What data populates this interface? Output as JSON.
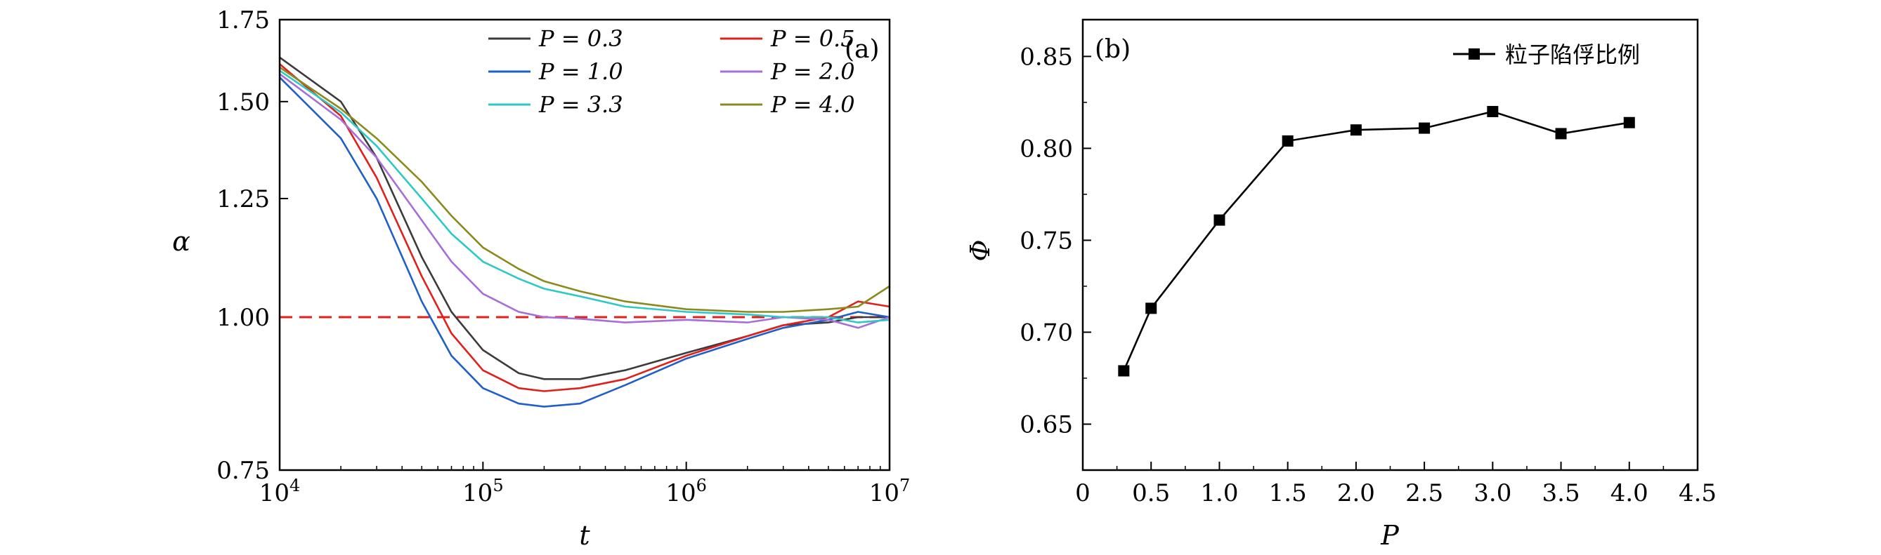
{
  "chart_data": [
    {
      "panel": "(a)",
      "type": "line",
      "xlabel": "t",
      "ylabel": "α",
      "xscale": "log",
      "xlim": [
        10000,
        10000000
      ],
      "yscale": "log",
      "ylim": [
        0.75,
        1.75
      ],
      "xticks": [
        10000,
        100000,
        1000000,
        10000000
      ],
      "xtick_labels": [
        "10^4",
        "10^5",
        "10^6",
        "10^7"
      ],
      "yticks": [
        0.75,
        1.0,
        1.25,
        1.5,
        1.75
      ],
      "ytick_labels": [
        "0.75",
        "1.00",
        "1.25",
        "1.50",
        "1.75"
      ],
      "legend_position": "top-right",
      "reference_line": {
        "y": 1.0,
        "style": "dashed",
        "color": "#e0201b"
      },
      "series": [
        {
          "name": "P = 0.3",
          "color": "#3b3b3b",
          "x": [
            10000,
            20000,
            30000,
            50000,
            70000,
            100000,
            150000,
            200000,
            300000,
            500000,
            1000000,
            2000000,
            3000000,
            5000000,
            7000000,
            10000000
          ],
          "y": [
            1.63,
            1.5,
            1.35,
            1.12,
            1.01,
            0.94,
            0.9,
            0.89,
            0.89,
            0.905,
            0.935,
            0.965,
            0.985,
            0.99,
            1.0,
            1.0
          ]
        },
        {
          "name": "P = 0.5",
          "color": "#e0201b",
          "x": [
            10000,
            20000,
            30000,
            50000,
            70000,
            100000,
            150000,
            200000,
            300000,
            500000,
            1000000,
            2000000,
            3000000,
            5000000,
            7000000,
            10000000
          ],
          "y": [
            1.61,
            1.46,
            1.3,
            1.08,
            0.97,
            0.905,
            0.875,
            0.87,
            0.875,
            0.89,
            0.93,
            0.965,
            0.985,
            1.0,
            1.03,
            1.02
          ]
        },
        {
          "name": "P = 1.0",
          "color": "#1f5fc8",
          "x": [
            10000,
            20000,
            30000,
            50000,
            70000,
            100000,
            150000,
            200000,
            300000,
            500000,
            1000000,
            2000000,
            3000000,
            5000000,
            7000000,
            10000000
          ],
          "y": [
            1.57,
            1.4,
            1.25,
            1.03,
            0.93,
            0.875,
            0.85,
            0.845,
            0.85,
            0.88,
            0.925,
            0.96,
            0.98,
            0.995,
            1.01,
            1.0
          ]
        },
        {
          "name": "P = 2.0",
          "color": "#a86dd8",
          "x": [
            10000,
            20000,
            30000,
            50000,
            70000,
            100000,
            150000,
            200000,
            300000,
            500000,
            1000000,
            2000000,
            3000000,
            5000000,
            7000000,
            10000000
          ],
          "y": [
            1.58,
            1.45,
            1.35,
            1.2,
            1.11,
            1.045,
            1.01,
            1.0,
            0.997,
            0.99,
            0.995,
            0.99,
            1.0,
            0.995,
            0.98,
            1.0
          ]
        },
        {
          "name": "P = 3.3",
          "color": "#2ec9c6",
          "x": [
            10000,
            20000,
            30000,
            50000,
            70000,
            100000,
            150000,
            200000,
            300000,
            500000,
            1000000,
            2000000,
            3000000,
            5000000,
            7000000,
            10000000
          ],
          "y": [
            1.59,
            1.47,
            1.38,
            1.25,
            1.17,
            1.11,
            1.075,
            1.055,
            1.04,
            1.02,
            1.01,
            1.005,
            1.0,
            1.0,
            0.99,
            0.995
          ]
        },
        {
          "name": "P = 4.0",
          "color": "#8a8a1e",
          "x": [
            10000,
            20000,
            30000,
            50000,
            70000,
            100000,
            150000,
            200000,
            300000,
            500000,
            1000000,
            2000000,
            3000000,
            5000000,
            7000000,
            10000000
          ],
          "y": [
            1.6,
            1.48,
            1.4,
            1.29,
            1.21,
            1.14,
            1.095,
            1.07,
            1.05,
            1.03,
            1.015,
            1.01,
            1.01,
            1.015,
            1.02,
            1.06
          ]
        }
      ]
    },
    {
      "panel": "(b)",
      "type": "line",
      "xlabel": "P",
      "ylabel": "Φ",
      "xlim": [
        0,
        4.5
      ],
      "ylim": [
        0.625,
        0.87
      ],
      "xticks": [
        0,
        0.5,
        1.0,
        1.5,
        2.0,
        2.5,
        3.0,
        3.5,
        4.0,
        4.5
      ],
      "xtick_labels": [
        "0",
        "0.5",
        "1.0",
        "1.5",
        "2.0",
        "2.5",
        "3.0",
        "3.5",
        "4.0",
        "4.5"
      ],
      "yticks": [
        0.65,
        0.7,
        0.75,
        0.8,
        0.85
      ],
      "ytick_labels": [
        "0.65",
        "0.70",
        "0.75",
        "0.80",
        "0.85"
      ],
      "legend_position": "top-right",
      "marker": "square",
      "series": [
        {
          "name": "粒子陷俘比例",
          "color": "#000000",
          "x": [
            0.3,
            0.5,
            1.0,
            1.5,
            2.0,
            2.5,
            3.0,
            3.5,
            4.0
          ],
          "y": [
            0.679,
            0.713,
            0.761,
            0.804,
            0.81,
            0.811,
            0.82,
            0.808,
            0.814
          ]
        }
      ]
    }
  ]
}
